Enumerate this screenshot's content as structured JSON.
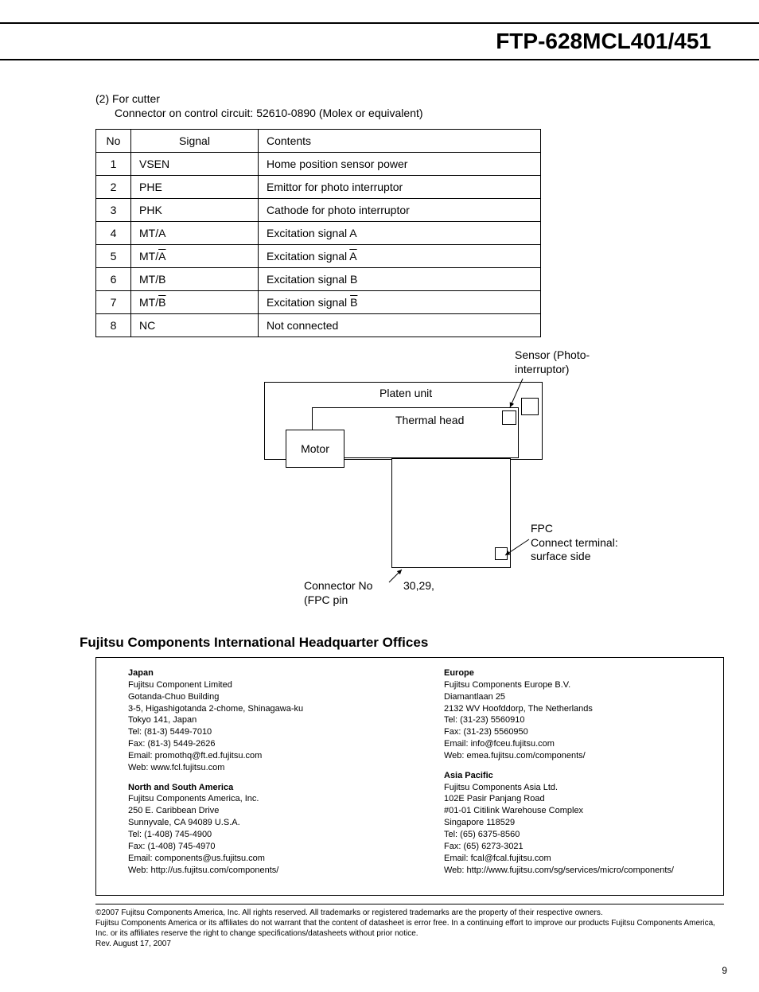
{
  "header": {
    "title": "FTP-628MCL401/451"
  },
  "section": {
    "label": "(2) For cutter",
    "sub": "Connector on control circuit: 52610-0890  (Molex or equivalent)"
  },
  "table": {
    "headers": {
      "no": "No",
      "signal": "Signal",
      "contents": "Contents"
    },
    "rows": [
      {
        "no": "1",
        "signal": "VSEN",
        "overline": false,
        "contents": "Home position sensor power",
        "contents_tail_overline": false
      },
      {
        "no": "2",
        "signal": "PHE",
        "overline": false,
        "contents": "Emittor for photo interruptor",
        "contents_tail_overline": false
      },
      {
        "no": "3",
        "signal": "PHK",
        "overline": false,
        "contents": "Cathode for photo interruptor",
        "contents_tail_overline": false
      },
      {
        "no": "4",
        "signal": "MT/A",
        "overline": false,
        "contents": "Excitation signal A",
        "contents_tail_overline": false
      },
      {
        "no": "5",
        "signal_prefix": "MT/",
        "signal_tail": "A",
        "overline": true,
        "contents_prefix": "Excitation signal ",
        "contents_tail": "A",
        "contents_tail_overline": true
      },
      {
        "no": "6",
        "signal": "MT/B",
        "overline": false,
        "contents": "Excitation signal B",
        "contents_tail_overline": false
      },
      {
        "no": "7",
        "signal_prefix": "MT/",
        "signal_tail": "B",
        "overline": true,
        "contents_prefix": "Excitation signal ",
        "contents_tail": "B",
        "contents_tail_overline": true
      },
      {
        "no": "8",
        "signal": "NC",
        "overline": false,
        "contents": "Not connected",
        "contents_tail_overline": false
      }
    ]
  },
  "diagram": {
    "sensor_label": "Sensor (Photo-\ninterruptor)",
    "platen": "Platen unit",
    "thermal": "Thermal head",
    "motor": "Motor",
    "fpc_label": "FPC\nConnect terminal:\nsurface side",
    "connector_no": "Connector No\n(FPC pin",
    "pins": "30,29,"
  },
  "hq": {
    "heading": "Fujitsu Components International Headquarter Offices",
    "japan": {
      "title": "Japan",
      "lines": [
        "Fujitsu Component Limited",
        "Gotanda-Chuo Building",
        "3-5, Higashigotanda 2-chome, Shinagawa-ku",
        "Tokyo 141, Japan",
        "Tel: (81-3) 5449-7010",
        "Fax: (81-3) 5449-2626",
        "Email: promothq@ft.ed.fujitsu.com",
        "Web: www.fcl.fujitsu.com"
      ]
    },
    "americas": {
      "title": "North and South America",
      "lines": [
        "Fujitsu Components America, Inc.",
        "250 E. Caribbean Drive",
        "Sunnyvale, CA  94089  U.S.A.",
        "Tel: (1-408) 745-4900",
        "Fax: (1-408) 745-4970",
        "Email: components@us.fujitsu.com",
        "Web: http://us.fujitsu.com/components/"
      ]
    },
    "europe": {
      "title": "Europe",
      "lines": [
        "Fujitsu Components Europe B.V.",
        "Diamantlaan 25",
        "2132 WV Hoofddorp, The Netherlands",
        "Tel: (31-23) 5560910",
        "Fax: (31-23) 5560950",
        "Email: info@fceu.fujitsu.com",
        "Web: emea.fujitsu.com/components/"
      ]
    },
    "asia": {
      "title": "Asia Pacific",
      "lines": [
        "Fujitsu Components Asia Ltd.",
        "102E Pasir Panjang Road",
        "#01-01 Citilink Warehouse Complex",
        "Singapore  118529",
        "Tel: (65) 6375-8560",
        "Fax: (65) 6273-3021",
        "Email: fcal@fcal.fujitsu.com",
        "Web: http://www.fujitsu.com/sg/services/micro/components/"
      ]
    }
  },
  "legal": {
    "line1": "©2007 Fujitsu Components America, Inc.  All rights reserved. All trademarks or registered trademarks are the property of their respective owners.",
    "line2": "Fujitsu Components America or its affiliates do not warrant that the content of datasheet is error free.  In a continuing effort to improve our products Fujitsu Components America, Inc. or its affiliates reserve the right to change specifications/datasheets without prior notice.",
    "rev": "Rev. August 17, 2007"
  },
  "page_number": "9"
}
